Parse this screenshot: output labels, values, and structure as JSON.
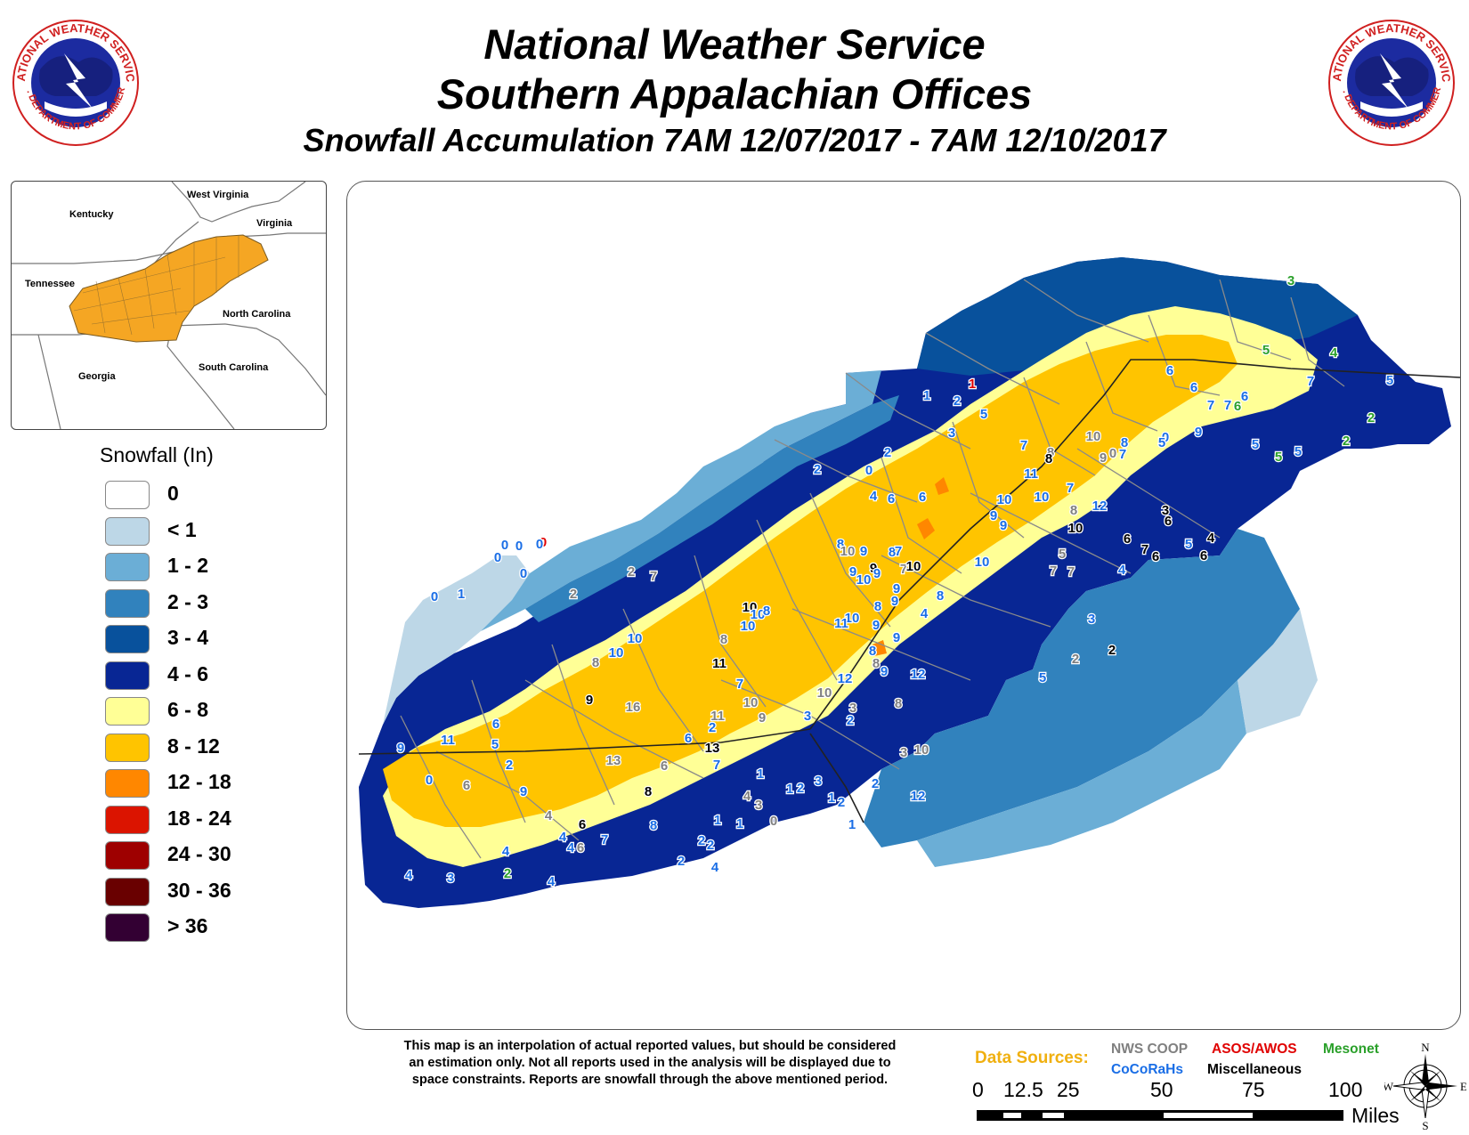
{
  "header": {
    "title_line1": "National Weather Service",
    "title_line2": "Southern Appalachian Offices",
    "title_line3": "Snowfall Accumulation 7AM 12/07/2017 - 7AM 12/10/2017"
  },
  "seal": {
    "text_top": "NATIONAL WEATHER SERVICE",
    "text_bottom": "U.S. DEPARTMENT OF COMMERCE"
  },
  "inset": {
    "states": [
      "Kentucky",
      "West Virginia",
      "Virginia",
      "Tennessee",
      "North Carolina",
      "South Carolina",
      "Georgia"
    ],
    "highlight_color": "#f5a623"
  },
  "legend": {
    "title": "Snowfall (In)",
    "items": [
      {
        "label": "0",
        "color": "#ffffff"
      },
      {
        "label": "< 1",
        "color": "#bdd7e7"
      },
      {
        "label": "1 - 2",
        "color": "#6baed6"
      },
      {
        "label": "2 - 3",
        "color": "#3182bd"
      },
      {
        "label": "3 - 4",
        "color": "#08519c"
      },
      {
        "label": "4 - 6",
        "color": "#082694"
      },
      {
        "label": "6 - 8",
        "color": "#ffff96"
      },
      {
        "label": "8 - 12",
        "color": "#ffc400"
      },
      {
        "label": "12 - 18",
        "color": "#ff8700"
      },
      {
        "label": "18 - 24",
        "color": "#db1400"
      },
      {
        "label": "24 - 30",
        "color": "#9e0000"
      },
      {
        "label": "30 - 36",
        "color": "#690000"
      },
      {
        "label": "> 36",
        "color": "#330033"
      }
    ]
  },
  "reports": [
    {
      "v": "3",
      "s": "m"
    },
    {
      "v": "5",
      "s": "m"
    },
    {
      "v": "4",
      "s": "m"
    },
    {
      "v": "6",
      "s": "m"
    },
    {
      "v": "2",
      "s": "m"
    },
    {
      "v": "5",
      "s": "m"
    },
    {
      "v": "2",
      "s": "m"
    },
    {
      "v": "5",
      "s": "c"
    },
    {
      "v": "5",
      "s": "c"
    },
    {
      "v": "6",
      "s": "c"
    },
    {
      "v": "7",
      "s": "c"
    },
    {
      "v": "7",
      "s": "c"
    },
    {
      "v": "6",
      "s": "c"
    },
    {
      "v": "7",
      "s": "c"
    },
    {
      "v": "9",
      "s": "c"
    },
    {
      "v": "5",
      "s": "c"
    },
    {
      "v": "6",
      "s": "c"
    },
    {
      "v": "0",
      "s": "c"
    },
    {
      "v": "1",
      "s": "a"
    },
    {
      "v": "1",
      "s": "c"
    },
    {
      "v": "2",
      "s": "c"
    },
    {
      "v": "5",
      "s": "c"
    },
    {
      "v": "3",
      "s": "c"
    },
    {
      "v": "0",
      "s": "c"
    },
    {
      "v": "2",
      "s": "c"
    },
    {
      "v": "2",
      "s": "c"
    },
    {
      "v": "4",
      "s": "c"
    },
    {
      "v": "6",
      "s": "c"
    },
    {
      "v": "6",
      "s": "c"
    },
    {
      "v": "7",
      "s": "c"
    },
    {
      "v": "8",
      "s": "n"
    },
    {
      "v": "10",
      "s": "n"
    },
    {
      "v": "9",
      "s": "n"
    },
    {
      "v": "8",
      "s": "c"
    },
    {
      "v": "7",
      "s": "c"
    },
    {
      "v": "0",
      "s": "n"
    },
    {
      "v": "5",
      "s": "c"
    },
    {
      "v": "8",
      "s": "x"
    },
    {
      "v": "11",
      "s": "c"
    },
    {
      "v": "7",
      "s": "c"
    },
    {
      "v": "10",
      "s": "c"
    },
    {
      "v": "8",
      "s": "n"
    },
    {
      "v": "12",
      "s": "c"
    },
    {
      "v": "9",
      "s": "c"
    },
    {
      "v": "10",
      "s": "c"
    },
    {
      "v": "9",
      "s": "c"
    },
    {
      "v": "10",
      "s": "x"
    },
    {
      "v": "6",
      "s": "x"
    },
    {
      "v": "3",
      "s": "x"
    },
    {
      "v": "6",
      "s": "x"
    },
    {
      "v": "5",
      "s": "c"
    },
    {
      "v": "4",
      "s": "x"
    },
    {
      "v": "7",
      "s": "x"
    },
    {
      "v": "6",
      "s": "x"
    },
    {
      "v": "6",
      "s": "x"
    },
    {
      "v": "4",
      "s": "c"
    },
    {
      "v": "7",
      "s": "n"
    },
    {
      "v": "5",
      "s": "n"
    },
    {
      "v": "7",
      "s": "n"
    },
    {
      "v": "3",
      "s": "c"
    },
    {
      "v": "2",
      "s": "n"
    },
    {
      "v": "2",
      "s": "x"
    },
    {
      "v": "5",
      "s": "c"
    },
    {
      "v": "0",
      "s": "c"
    },
    {
      "v": "0",
      "s": "c"
    },
    {
      "v": "0",
      "s": "a"
    },
    {
      "v": "0",
      "s": "c"
    },
    {
      "v": "0",
      "s": "c"
    },
    {
      "v": "0",
      "s": "c"
    },
    {
      "v": "0",
      "s": "c"
    },
    {
      "v": "1",
      "s": "c"
    },
    {
      "v": "2",
      "s": "n"
    },
    {
      "v": "2",
      "s": "n"
    },
    {
      "v": "7",
      "s": "n"
    },
    {
      "v": "8",
      "s": "c"
    },
    {
      "v": "10",
      "s": "n"
    },
    {
      "v": "9",
      "s": "c"
    },
    {
      "v": "8",
      "s": "c"
    },
    {
      "v": "7",
      "s": "c"
    },
    {
      "v": "9",
      "s": "x"
    },
    {
      "v": "7",
      "s": "n"
    },
    {
      "v": "10",
      "s": "x"
    },
    {
      "v": "9",
      "s": "c"
    },
    {
      "v": "10",
      "s": "c"
    },
    {
      "v": "9",
      "s": "c"
    },
    {
      "v": "9",
      "s": "c"
    },
    {
      "v": "8",
      "s": "c"
    },
    {
      "v": "10",
      "s": "c"
    },
    {
      "v": "9",
      "s": "c"
    },
    {
      "v": "4",
      "s": "c"
    },
    {
      "v": "8",
      "s": "c"
    },
    {
      "v": "10",
      "s": "c"
    },
    {
      "v": "10",
      "s": "x"
    },
    {
      "v": "10",
      "s": "c"
    },
    {
      "v": "8",
      "s": "c"
    },
    {
      "v": "11",
      "s": "c"
    },
    {
      "v": "9",
      "s": "c"
    },
    {
      "v": "8",
      "s": "c"
    },
    {
      "v": "9",
      "s": "c"
    },
    {
      "v": "8",
      "s": "n"
    },
    {
      "v": "9",
      "s": "c"
    },
    {
      "v": "12",
      "s": "c"
    },
    {
      "v": "12",
      "s": "c"
    },
    {
      "v": "10",
      "s": "n"
    },
    {
      "v": "3",
      "s": "n"
    },
    {
      "v": "3",
      "s": "c"
    },
    {
      "v": "2",
      "s": "c"
    },
    {
      "v": "8",
      "s": "n"
    },
    {
      "v": "10",
      "s": "c"
    },
    {
      "v": "8",
      "s": "n"
    },
    {
      "v": "7",
      "s": "c"
    },
    {
      "v": "10",
      "s": "n"
    },
    {
      "v": "11",
      "s": "n"
    },
    {
      "v": "10",
      "s": "c"
    },
    {
      "v": "8",
      "s": "n"
    },
    {
      "v": "10",
      "s": "c"
    },
    {
      "v": "11",
      "s": "x"
    },
    {
      "v": "9",
      "s": "x"
    },
    {
      "v": "16",
      "s": "n"
    },
    {
      "v": "9",
      "s": "n"
    },
    {
      "v": "13",
      "s": "x"
    },
    {
      "v": "13",
      "s": "n"
    },
    {
      "v": "8",
      "s": "x"
    },
    {
      "v": "6",
      "s": "c"
    },
    {
      "v": "2",
      "s": "c"
    },
    {
      "v": "7",
      "s": "c"
    },
    {
      "v": "6",
      "s": "n"
    },
    {
      "v": "2",
      "s": "c"
    },
    {
      "v": "9",
      "s": "c"
    },
    {
      "v": "9",
      "s": "c"
    },
    {
      "v": "11",
      "s": "c"
    },
    {
      "v": "5",
      "s": "c"
    },
    {
      "v": "6",
      "s": "c"
    },
    {
      "v": "0",
      "s": "c"
    },
    {
      "v": "6",
      "s": "n"
    },
    {
      "v": "4",
      "s": "n"
    },
    {
      "v": "4",
      "s": "c"
    },
    {
      "v": "4",
      "s": "c"
    },
    {
      "v": "6",
      "s": "x"
    },
    {
      "v": "7",
      "s": "c"
    },
    {
      "v": "6",
      "s": "n"
    },
    {
      "v": "8",
      "s": "c"
    },
    {
      "v": "4",
      "s": "c"
    },
    {
      "v": "4",
      "s": "c"
    },
    {
      "v": "3",
      "s": "c"
    },
    {
      "v": "2",
      "s": "m"
    },
    {
      "v": "4",
      "s": "c"
    },
    {
      "v": "2",
      "s": "c"
    },
    {
      "v": "2",
      "s": "c"
    },
    {
      "v": "1",
      "s": "c"
    },
    {
      "v": "3",
      "s": "n"
    },
    {
      "v": "1",
      "s": "c"
    },
    {
      "v": "2",
      "s": "c"
    },
    {
      "v": "1",
      "s": "c"
    },
    {
      "v": "4",
      "s": "c"
    },
    {
      "v": "2",
      "s": "c"
    },
    {
      "v": "4",
      "s": "n"
    },
    {
      "v": "1",
      "s": "c"
    },
    {
      "v": "0",
      "s": "n"
    },
    {
      "v": "3",
      "s": "c"
    },
    {
      "v": "1",
      "s": "c"
    },
    {
      "v": "2",
      "s": "c"
    },
    {
      "v": "2",
      "s": "c"
    },
    {
      "v": "1",
      "s": "c"
    },
    {
      "v": "3",
      "s": "n"
    },
    {
      "v": "10",
      "s": "n"
    },
    {
      "v": "12",
      "s": "c"
    }
  ],
  "report_colors": {
    "c": "#1a6ee6",
    "n": "#808080",
    "x": "#000000",
    "a": "#e00000",
    "m": "#2aa02a"
  },
  "disclaimer": {
    "line1": "This map is an interpolation of actual reported values, but should be considered",
    "line2": "an estimation only. Not all reports used in the analysis will be displayed due to",
    "line3": "space constraints. Reports are snowfall through the above mentioned period."
  },
  "data_sources": {
    "title": "Data Sources:",
    "nws_coop": "NWS COOP",
    "asos_awos": "ASOS/AWOS",
    "mesonet": "Mesonet",
    "cocorahs": "CoCoRaHs",
    "misc": "Miscellaneous"
  },
  "scale": {
    "ticks": [
      "0",
      "12.5",
      "25",
      "50",
      "75",
      "100"
    ],
    "unit": "Miles"
  },
  "compass": {
    "n": "N",
    "s": "S",
    "e": "E",
    "w": "W"
  }
}
